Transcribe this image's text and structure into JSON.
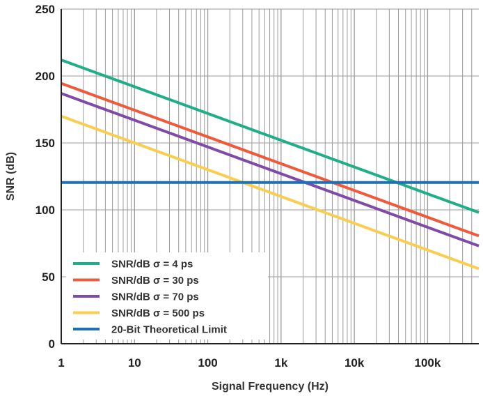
{
  "chart_data": {
    "type": "line",
    "title": "",
    "xlabel": "Signal Frequency (Hz)",
    "ylabel": "SNR (dB)",
    "x_scale": "log",
    "xlim": [
      1,
      500000
    ],
    "ylim": [
      0,
      250
    ],
    "x_ticks": [
      1,
      10,
      100,
      1000,
      10000,
      100000
    ],
    "x_tick_labels": [
      "1",
      "10",
      "100",
      "1k",
      "10k",
      "100k"
    ],
    "y_ticks": [
      0,
      50,
      100,
      150,
      200,
      250
    ],
    "y_tick_labels": [
      "0",
      "50",
      "100",
      "150",
      "200",
      "250"
    ],
    "grid": true,
    "legend_position": "bottom-left",
    "series": [
      {
        "name": "SNR/dB σ = 4 ps",
        "color": "#1fae88",
        "points": [
          [
            1,
            212.0
          ],
          [
            500000,
            98.0
          ]
        ]
      },
      {
        "name": "SNR/dB σ = 30 ps",
        "color": "#f05a3c",
        "points": [
          [
            1,
            194.5
          ],
          [
            500000,
            80.5
          ]
        ]
      },
      {
        "name": "SNR/dB σ = 70 ps",
        "color": "#7f4ba6",
        "points": [
          [
            1,
            187.0
          ],
          [
            500000,
            73.0
          ]
        ]
      },
      {
        "name": "SNR/dB σ = 500 ps",
        "color": "#f9cd4f",
        "points": [
          [
            1,
            170.0
          ],
          [
            500000,
            56.0
          ]
        ]
      },
      {
        "name": "20-Bit Theoretical Limit",
        "color": "#1e6fb3",
        "points": [
          [
            1,
            120.4
          ],
          [
            500000,
            120.4
          ]
        ]
      }
    ]
  }
}
